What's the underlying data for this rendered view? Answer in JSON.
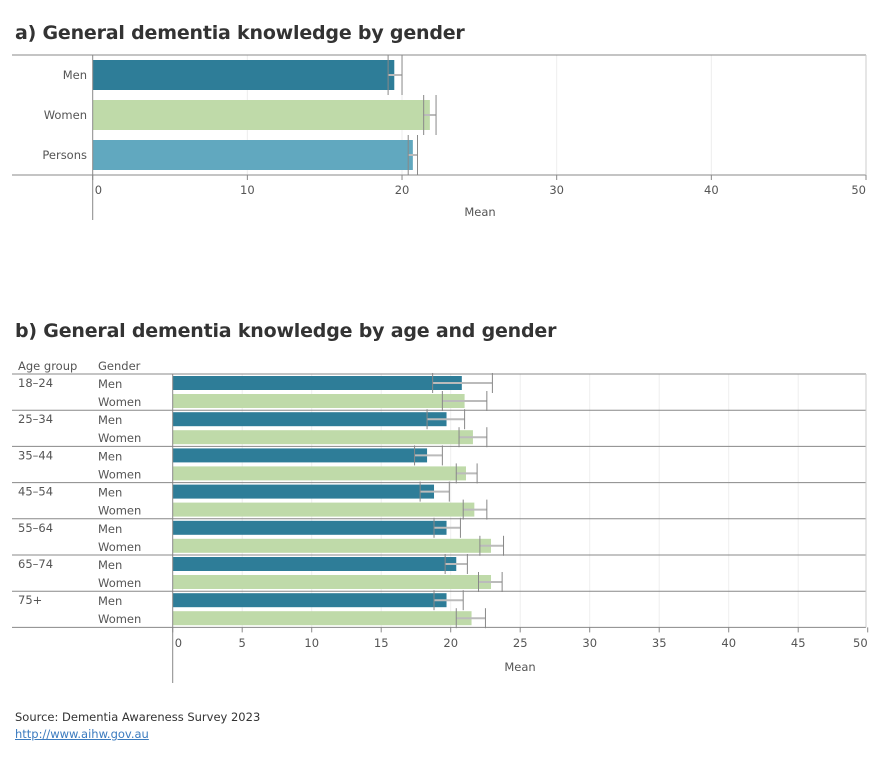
{
  "colors": {
    "men": "#2e7d98",
    "women": "#bfdaa9",
    "persons": "#61a8bf",
    "error_bar": "#888888",
    "grid": "#eeeeee",
    "axis": "#888888"
  },
  "chart_data": [
    {
      "type": "bar",
      "orientation": "horizontal",
      "title": "a) General dementia knowledge by gender",
      "xlabel": "Mean",
      "xlim": [
        0,
        50
      ],
      "xticks": [
        0,
        10,
        20,
        30,
        40,
        50
      ],
      "grid": true,
      "categories": [
        "Men",
        "Women",
        "Persons"
      ],
      "values": [
        19.5,
        21.8,
        20.7
      ],
      "error_low": [
        19.1,
        21.4,
        20.4
      ],
      "error_high": [
        20.0,
        22.2,
        21.0
      ]
    },
    {
      "type": "bar",
      "orientation": "horizontal",
      "title": "b) General dementia knowledge by age and gender",
      "xlabel": "Mean",
      "xlim": [
        0,
        50
      ],
      "xticks": [
        0,
        5,
        10,
        15,
        20,
        25,
        30,
        35,
        40,
        45,
        50
      ],
      "grid": true,
      "row_headers": [
        "Age group",
        "Gender"
      ],
      "groups": [
        {
          "age": "18–24",
          "rows": [
            {
              "gender": "Men",
              "value": 20.8,
              "low": 18.7,
              "high": 23.0
            },
            {
              "gender": "Women",
              "value": 21.0,
              "low": 19.4,
              "high": 22.6
            }
          ]
        },
        {
          "age": "25–34",
          "rows": [
            {
              "gender": "Men",
              "value": 19.7,
              "low": 18.3,
              "high": 21.0
            },
            {
              "gender": "Women",
              "value": 21.6,
              "low": 20.6,
              "high": 22.6
            }
          ]
        },
        {
          "age": "35–44",
          "rows": [
            {
              "gender": "Men",
              "value": 18.3,
              "low": 17.4,
              "high": 19.4
            },
            {
              "gender": "Women",
              "value": 21.1,
              "low": 20.4,
              "high": 21.9
            }
          ]
        },
        {
          "age": "45–54",
          "rows": [
            {
              "gender": "Men",
              "value": 18.8,
              "low": 17.8,
              "high": 19.9
            },
            {
              "gender": "Women",
              "value": 21.7,
              "low": 20.9,
              "high": 22.6
            }
          ]
        },
        {
          "age": "55–64",
          "rows": [
            {
              "gender": "Men",
              "value": 19.7,
              "low": 18.8,
              "high": 20.7
            },
            {
              "gender": "Women",
              "value": 22.9,
              "low": 22.1,
              "high": 23.8
            }
          ]
        },
        {
          "age": "65–74",
          "rows": [
            {
              "gender": "Men",
              "value": 20.4,
              "low": 19.6,
              "high": 21.2
            },
            {
              "gender": "Women",
              "value": 22.9,
              "low": 22.0,
              "high": 23.7
            }
          ]
        },
        {
          "age": "75+",
          "rows": [
            {
              "gender": "Men",
              "value": 19.7,
              "low": 18.8,
              "high": 20.9
            },
            {
              "gender": "Women",
              "value": 21.5,
              "low": 20.4,
              "high": 22.5
            }
          ]
        }
      ]
    }
  ],
  "footer": {
    "source": "Source: Dementia Awareness Survey 2023",
    "link": "http://www.aihw.gov.au"
  }
}
